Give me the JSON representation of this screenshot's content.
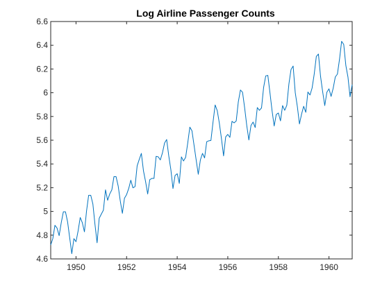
{
  "chart_data": {
    "type": "line",
    "title": "Log Airline Passenger Counts",
    "xlabel": "",
    "ylabel": "",
    "xlim": [
      1949.0,
      1960.917
    ],
    "ylim": [
      4.6,
      6.6
    ],
    "xticks": [
      1950,
      1952,
      1954,
      1956,
      1958,
      1960
    ],
    "yticks": [
      4.6,
      4.8,
      5,
      5.2,
      5.4,
      5.6,
      5.8,
      6,
      6.2,
      6.4,
      6.6
    ],
    "grid": false,
    "legend": "none",
    "colors": {
      "line": "#0072BD",
      "axes": "#262626",
      "background": "#ffffff"
    },
    "series": [
      {
        "x_start": 1949.0,
        "x_step": 0.08333,
        "values": [
          4.718,
          4.771,
          4.883,
          4.86,
          4.796,
          4.905,
          4.997,
          4.997,
          4.913,
          4.779,
          4.644,
          4.771,
          4.745,
          4.836,
          4.949,
          4.905,
          4.828,
          5.004,
          5.136,
          5.136,
          5.063,
          4.89,
          4.736,
          4.942,
          4.977,
          5.011,
          5.182,
          5.094,
          5.147,
          5.182,
          5.293,
          5.293,
          5.215,
          5.088,
          4.984,
          5.112,
          5.142,
          5.193,
          5.263,
          5.199,
          5.209,
          5.384,
          5.438,
          5.489,
          5.342,
          5.252,
          5.147,
          5.268,
          5.278,
          5.278,
          5.464,
          5.46,
          5.434,
          5.493,
          5.576,
          5.606,
          5.468,
          5.352,
          5.193,
          5.303,
          5.318,
          5.236,
          5.46,
          5.425,
          5.455,
          5.576,
          5.71,
          5.68,
          5.557,
          5.434,
          5.313,
          5.434,
          5.489,
          5.451,
          5.587,
          5.595,
          5.598,
          5.753,
          5.897,
          5.849,
          5.743,
          5.613,
          5.468,
          5.628,
          5.649,
          5.624,
          5.759,
          5.746,
          5.762,
          5.924,
          6.023,
          6.004,
          5.872,
          5.724,
          5.602,
          5.724,
          5.753,
          5.707,
          5.875,
          5.852,
          5.872,
          6.045,
          6.142,
          6.146,
          6.001,
          5.849,
          5.72,
          5.817,
          5.829,
          5.763,
          5.892,
          5.852,
          5.894,
          6.075,
          6.196,
          6.225,
          6.001,
          5.883,
          5.737,
          5.82,
          5.886,
          5.835,
          6.006,
          5.981,
          6.04,
          6.157,
          6.306,
          6.326,
          6.138,
          6.009,
          5.892,
          6.004,
          6.033,
          5.969,
          6.038,
          6.133,
          6.157,
          6.282,
          6.433,
          6.407,
          6.23,
          6.133,
          5.966,
          6.068
        ]
      }
    ]
  }
}
